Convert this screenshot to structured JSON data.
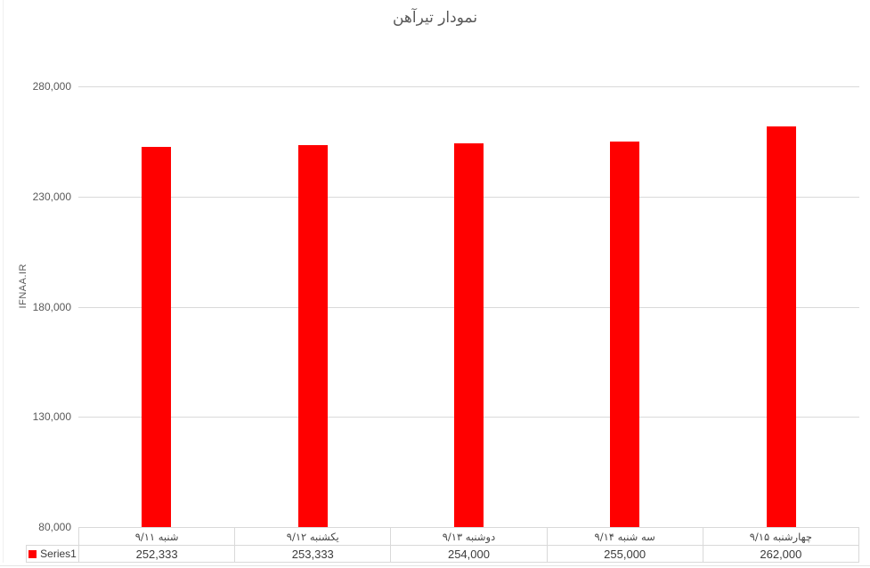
{
  "chart_data": {
    "type": "bar",
    "title": "نمودار تیرآهن",
    "ylabel": "IFNAA.IR",
    "categories": [
      "شنبه ۹/۱۱",
      "یکشنبه ۹/۱۲",
      "دوشنبه ۹/۱۳",
      "سه شنبه ۹/۱۴",
      "چهارشنبه ۹/۱۵"
    ],
    "series": [
      {
        "name": "Series1",
        "values": [
          252333,
          253333,
          254000,
          255000,
          262000
        ]
      }
    ],
    "value_labels": [
      "252,333",
      "253,333",
      "254,000",
      "255,000",
      "262,000"
    ],
    "yticks": [
      "280,000",
      "230,000",
      "180,000",
      "130,000",
      "80,000"
    ],
    "ylim": [
      80000,
      280000
    ],
    "ytick_step": 50000,
    "grid": true,
    "legend_position": "bottom-left",
    "bar_color": "#FF0000",
    "colors": {
      "axis_text": "#595959",
      "gridline": "#D9D9D9",
      "table_border": "#D9D9D9",
      "category_text": "#454545",
      "value_text": "#3B3B3B"
    }
  }
}
